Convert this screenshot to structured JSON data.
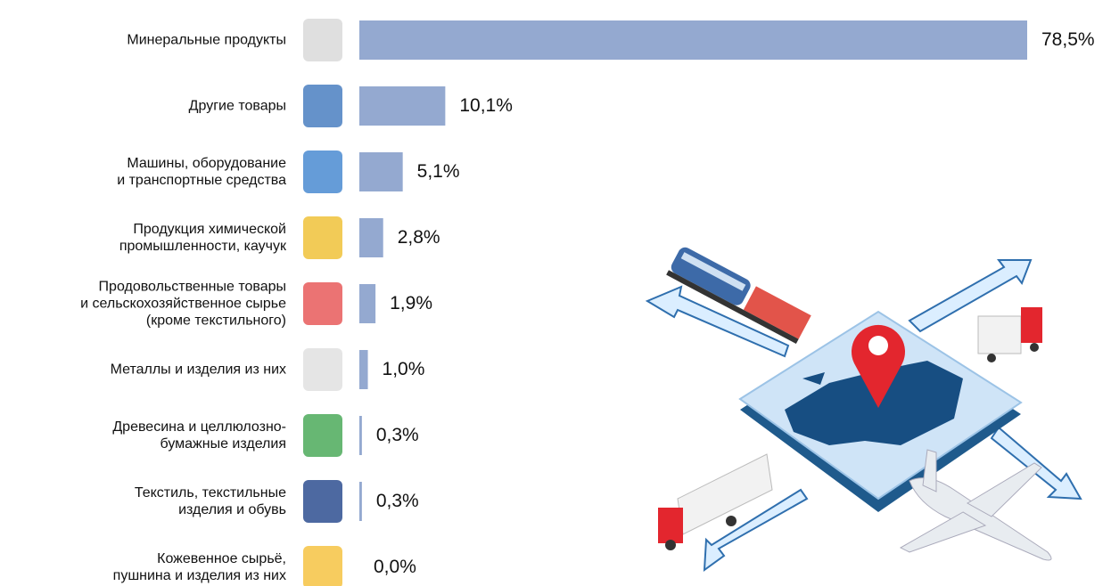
{
  "chart_data": {
    "type": "bar",
    "orientation": "horizontal",
    "color": "#94a9d0",
    "categories": [
      "Минеральные продукты",
      "Другие товары",
      "Машины, оборудование\nи транспортные средства",
      "Продукция химической\nпромышленности, каучук",
      "Продовольственные товары\nи сельскохозяйственное сырье\n(кроме текстильного)",
      "Металлы и изделия из них",
      "Древесина и целлюлозно-\nбумажные изделия",
      "Текстиль, текстильные\nизделия и обувь",
      "Кожевенное сырьё,\nпушнина и изделия из них"
    ],
    "values": [
      78.5,
      10.1,
      5.1,
      2.8,
      1.9,
      1.0,
      0.3,
      0.3,
      0.0
    ],
    "value_labels": [
      "78,5%",
      "10,1%",
      "5,1%",
      "2,8%",
      "1,9%",
      "1,0%",
      "0,3%",
      "0,3%",
      "0,0%"
    ]
  }
}
